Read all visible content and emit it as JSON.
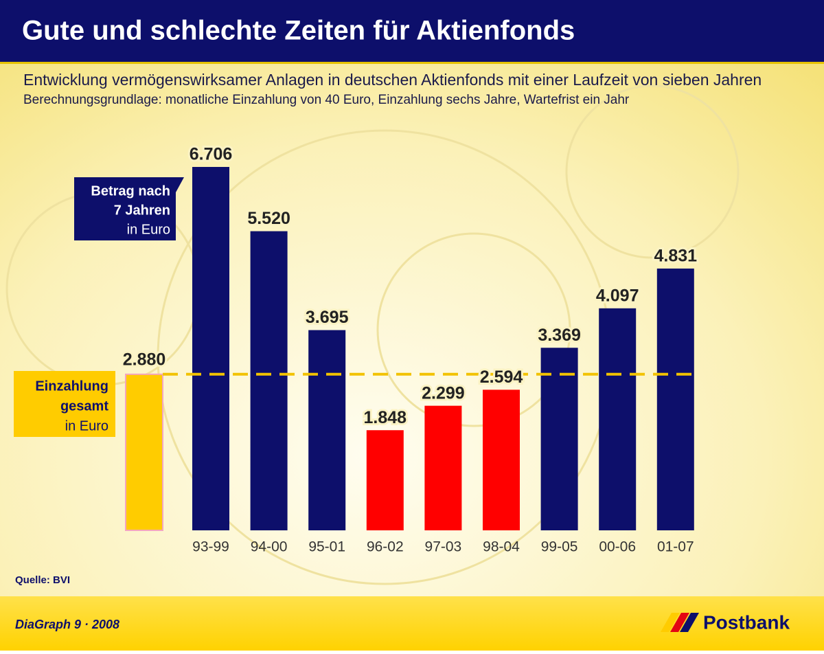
{
  "chart_data": {
    "type": "bar",
    "title": "Gute und schlechte Zeiten für Aktienfonds",
    "subtitle": "Entwicklung vermögenswirksamer Anlagen in deutschen Aktienfonds mit einer Laufzeit von sieben Jahren",
    "note": "Berechnungsgrundlage: monatliche Einzahlung von 40 Euro, Einzahlung sechs Jahre, Wartefrist ein Jahr",
    "categories": [
      "93-99",
      "94-00",
      "95-01",
      "96-02",
      "97-03",
      "98-04",
      "99-05",
      "00-06",
      "01-07"
    ],
    "values": [
      6706,
      5520,
      3695,
      1848,
      2299,
      2594,
      3369,
      4097,
      4831
    ],
    "value_labels": [
      "6.706",
      "5.520",
      "3.695",
      "1.848",
      "2.299",
      "2.594",
      "3.369",
      "4.097",
      "4.831"
    ],
    "colors": [
      "#0d0f6b",
      "#0d0f6b",
      "#0d0f6b",
      "#ff0000",
      "#ff0000",
      "#ff0000",
      "#0d0f6b",
      "#0d0f6b",
      "#0d0f6b"
    ],
    "legend": {
      "lines": [
        "Betrag nach",
        "7 Jahren",
        "in Euro"
      ],
      "color": "#0d0f6b"
    },
    "reference": {
      "value": 2880,
      "value_label": "2.880",
      "color": "#ffcc00",
      "lines": [
        "Einzahlung",
        "gesamt",
        "in Euro"
      ]
    },
    "source": "Quelle: BVI",
    "footer": {
      "credit": "DiaGraph 9 · 2008",
      "brand": "Postbank"
    }
  }
}
